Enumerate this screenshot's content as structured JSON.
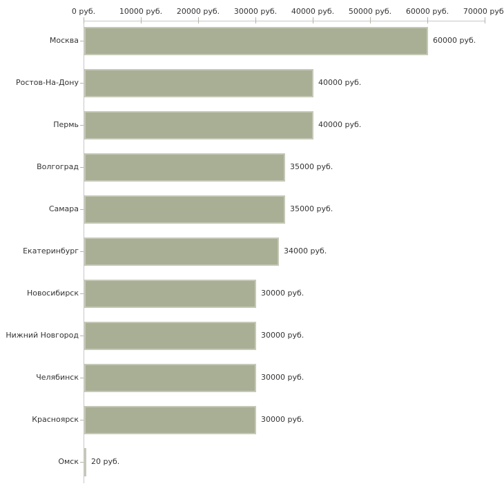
{
  "chart_data": {
    "type": "bar",
    "orientation": "horizontal",
    "title": "",
    "xlabel": "",
    "ylabel": "",
    "grid": false,
    "legend": false,
    "categories": [
      "Москва",
      "Ростов-На-Дону",
      "Пермь",
      "Волгоград",
      "Самара",
      "Екатеринбург",
      "Новосибирск",
      "Нижний Новгород",
      "Челябинск",
      "Красноярск",
      "Омск"
    ],
    "values": [
      60000,
      40000,
      40000,
      35000,
      35000,
      34000,
      30000,
      30000,
      30000,
      30000,
      20
    ],
    "value_labels": [
      "60000 руб.",
      "40000 руб.",
      "40000 руб.",
      "35000 руб.",
      "35000 руб.",
      "34000 руб.",
      "30000 руб.",
      "30000 руб.",
      "30000 руб.",
      "30000 руб.",
      "20 руб."
    ],
    "x_axis": {
      "position": "top",
      "range": [
        0,
        70000
      ],
      "ticks": [
        0,
        10000,
        20000,
        30000,
        40000,
        50000,
        60000,
        70000
      ],
      "tick_labels": [
        "0 руб.",
        "10000 руб.",
        "20000 руб.",
        "30000 руб.",
        "40000 руб.",
        "50000 руб.",
        "60000 руб.",
        "70000 руб."
      ]
    },
    "colors": {
      "bar": "#a9af94",
      "axis_line": "#c6c6c6",
      "tick": "#b3b3a3",
      "text": "#333333",
      "background": "#ffffff"
    }
  }
}
